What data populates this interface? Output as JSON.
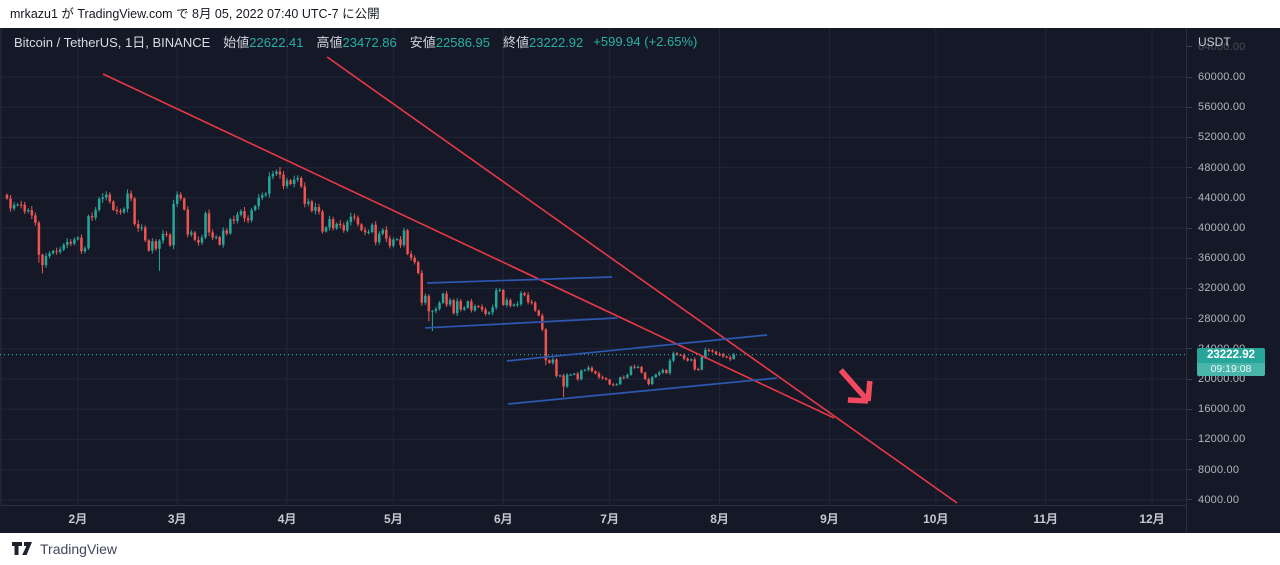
{
  "banner_top": {
    "text": "mrkazu1 が TradingView.com で 8月 05, 2022 07:40 UTC-7 に公開"
  },
  "header": {
    "title": "Bitcoin / TetherUS, 1日, BINANCE",
    "open_label": "始値",
    "open_value": "22622.41",
    "high_label": "高値",
    "high_value": "23472.86",
    "low_label": "安値",
    "low_value": "22586.95",
    "close_label": "終値",
    "close_value": "23222.92",
    "change": "+599.94 (+2.65%)"
  },
  "price_axis": {
    "currency": "USDT",
    "badge_price": "23222.92",
    "badge_countdown": "09:19:08"
  },
  "banner_bottom": {
    "brand": "TradingView"
  },
  "colors": {
    "background": "#151927",
    "grid": "#202639",
    "axis_border": "#2a2f3e",
    "up": "#26a69a",
    "down": "#ef5350",
    "trend_red": "#e73847",
    "arrow_red": "#f2495e",
    "channel_blue": "#2d57b0",
    "last_price_line": "#2fbdae",
    "badge": "#26a69a"
  },
  "chart_data": {
    "type": "candlestick",
    "title": "Bitcoin / TetherUS, 1日, BINANCE",
    "symbol": "Bitcoin / TetherUS",
    "interval": "1日",
    "exchange": "BINANCE",
    "last_price": 23222.92,
    "countdown": "09:19:08",
    "y_axis": {
      "min_tick": 4000,
      "max_tick": 64000,
      "tick_step": 4000,
      "currency": "USDT"
    },
    "x_axis": {
      "start_date": "2022-01-12",
      "month_labels": [
        "2月",
        "3月",
        "4月",
        "5月",
        "6月",
        "7月",
        "8月",
        "9月",
        "10月",
        "11月",
        "12月"
      ],
      "month_start_day_index": [
        20,
        48,
        79,
        109,
        140,
        170,
        201,
        232,
        262,
        293,
        323
      ]
    },
    "first_open": 44400,
    "closes": [
      43900,
      42580,
      43070,
      43090,
      43080,
      42200,
      42370,
      41660,
      40680,
      36460,
      35070,
      36280,
      36650,
      36950,
      36840,
      37160,
      37780,
      38160,
      37920,
      38480,
      38740,
      36920,
      37310,
      41570,
      41380,
      42400,
      43850,
      44050,
      44420,
      43500,
      42400,
      42230,
      42070,
      42540,
      44570,
      43890,
      40520,
      39970,
      40080,
      38380,
      37000,
      38230,
      37250,
      38330,
      39220,
      39120,
      37700,
      43190,
      44420,
      43890,
      42450,
      39140,
      39400,
      38420,
      38060,
      38750,
      41950,
      39420,
      38730,
      38810,
      37790,
      39670,
      39280,
      41140,
      40950,
      41770,
      42240,
      41280,
      41020,
      42370,
      42900,
      44010,
      44340,
      44540,
      46830,
      47150,
      47470,
      47080,
      45540,
      46300,
      45830,
      46420,
      46620,
      45510,
      43210,
      43500,
      42280,
      42770,
      42160,
      39530,
      40080,
      41170,
      39940,
      40550,
      40380,
      39680,
      40800,
      41500,
      41370,
      40480,
      39710,
      39430,
      39470,
      40430,
      38120,
      39240,
      39750,
      38600,
      37640,
      38470,
      38510,
      37730,
      39690,
      36550,
      36040,
      35470,
      34040,
      30100,
      31020,
      28970,
      29020,
      29280,
      30080,
      31300,
      29860,
      30440,
      28700,
      30310,
      29200,
      29430,
      30290,
      29100,
      29650,
      29560,
      29200,
      28620,
      28810,
      29470,
      31730,
      31790,
      29800,
      30450,
      29700,
      29860,
      29910,
      31370,
      31120,
      30200,
      30110,
      29080,
      28400,
      26570,
      22490,
      22130,
      22570,
      20380,
      20470,
      19010,
      20570,
      20570,
      20710,
      19970,
      21100,
      21230,
      21500,
      21030,
      20730,
      20250,
      20100,
      19920,
      19270,
      19240,
      19300,
      20230,
      20190,
      20550,
      21640,
      21590,
      21590,
      20860,
      19960,
      19330,
      20230,
      20590,
      20840,
      21190,
      20790,
      22430,
      23400,
      23230,
      23160,
      22690,
      22450,
      22600,
      21310,
      21250,
      22930,
      23840,
      23770,
      23640,
      23290,
      23270,
      22980,
      22850,
      22620,
      23222.92
    ],
    "wick_overrides": {
      "9": {
        "low": 35400
      },
      "10": {
        "low": 34000
      },
      "43": {
        "low": 34320
      },
      "117": {
        "low": 29700
      },
      "119": {
        "low": 27650
      },
      "120": {
        "low": 26350
      },
      "152": {
        "low": 21830
      },
      "157": {
        "low": 17600
      },
      "205": {
        "high": 23472.86,
        "low": 22586.95
      }
    },
    "drawings": {
      "red_trendlines": [
        {
          "d1": 27.1,
          "p1": 60400,
          "d2": 233.3,
          "p2": 14830
        },
        {
          "d1": 90.3,
          "p1": 62650,
          "d2": 268.0,
          "p2": 3580
        }
      ],
      "blue_channel_lines": [
        {
          "d1": 118.5,
          "p1": 32720,
          "d2": 170.7,
          "p2": 33510
        },
        {
          "d1": 117.9,
          "p1": 26760,
          "d2": 172.1,
          "p2": 28080
        },
        {
          "d1": 141.0,
          "p1": 22390,
          "d2": 214.4,
          "p2": 25830
        },
        {
          "d1": 141.3,
          "p1": 16690,
          "d2": 217.2,
          "p2": 20130
        }
      ],
      "arrow": {
        "shaft": {
          "d1": 235.2,
          "p1": 21190,
          "d2": 242.9,
          "p2": 17090
        },
        "head": [
          {
            "d1": 242.9,
            "p1": 17090,
            "d2": 237.2,
            "p2": 17220
          },
          {
            "d1": 242.9,
            "p1": 17090,
            "d2": 243.4,
            "p2": 19740
          }
        ]
      }
    }
  }
}
